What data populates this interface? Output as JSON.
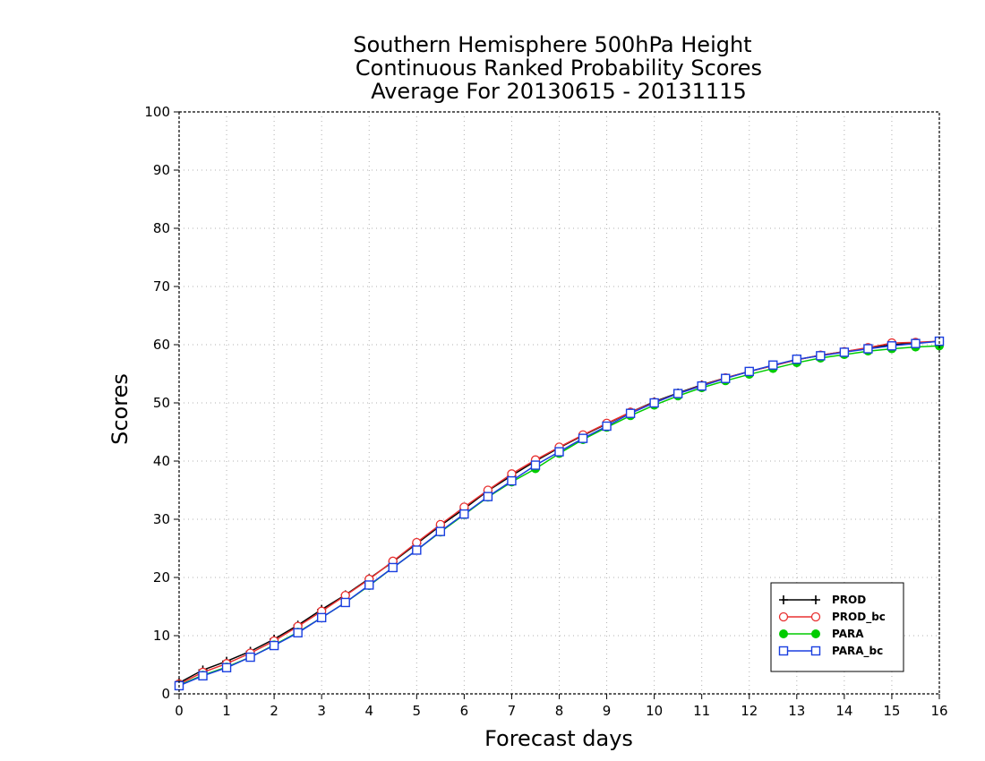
{
  "chart_data": {
    "type": "line",
    "title_lines": [
      "Southern Hemisphere 500hPa Height",
      "Continuous Ranked Probability Scores",
      "Average For 20130615 - 20131115"
    ],
    "xlabel": "Forecast days",
    "ylabel": "Scores",
    "xlim": [
      0,
      16
    ],
    "ylim": [
      0,
      100
    ],
    "xticks": [
      0,
      1,
      2,
      3,
      4,
      5,
      6,
      7,
      8,
      9,
      10,
      11,
      12,
      13,
      14,
      15,
      16
    ],
    "yticks": [
      0,
      10,
      20,
      30,
      40,
      50,
      60,
      70,
      80,
      90,
      100
    ],
    "grid": true,
    "legend_position": "bottom-right",
    "x": [
      0,
      0.5,
      1,
      1.5,
      2,
      2.5,
      3,
      3.5,
      4,
      4.5,
      5,
      5.5,
      6,
      6.5,
      7,
      7.5,
      8,
      8.5,
      9,
      9.5,
      10,
      10.5,
      11,
      11.5,
      12,
      12.5,
      13,
      13.5,
      14,
      14.5,
      15,
      15.5,
      16
    ],
    "series": [
      {
        "name": "PROD",
        "color": "#000000",
        "marker": "plus",
        "values": [
          1.9,
          4.1,
          5.6,
          7.3,
          9.4,
          11.8,
          14.5,
          17.0,
          19.8,
          22.7,
          25.8,
          28.9,
          31.8,
          34.9,
          37.5,
          40.0,
          42.3,
          44.4,
          46.4,
          48.4,
          50.2,
          51.7,
          53.1,
          54.3,
          55.4,
          56.4,
          57.4,
          58.2,
          58.8,
          59.4,
          60.0,
          60.3,
          60.6
        ]
      },
      {
        "name": "PROD_bc",
        "color": "#e83030",
        "marker": "circle",
        "values": [
          1.7,
          3.7,
          5.2,
          7.0,
          9.1,
          11.6,
          14.2,
          16.9,
          19.7,
          22.8,
          26.0,
          29.1,
          32.1,
          35.0,
          37.8,
          40.2,
          42.4,
          44.5,
          46.5,
          48.4,
          50.1,
          51.6,
          53.0,
          54.3,
          55.4,
          56.4,
          57.4,
          58.2,
          58.8,
          59.5,
          60.3,
          60.4,
          60.6
        ]
      },
      {
        "name": "PARA",
        "color": "#00cc00",
        "marker": "filled-circle",
        "values": [
          1.5,
          3.2,
          4.6,
          6.3,
          8.4,
          10.6,
          13.1,
          15.7,
          18.6,
          21.7,
          24.7,
          27.8,
          30.8,
          33.8,
          36.4,
          38.7,
          41.3,
          43.7,
          45.8,
          47.8,
          49.6,
          51.2,
          52.6,
          53.8,
          54.9,
          55.9,
          56.9,
          57.7,
          58.3,
          58.9,
          59.3,
          59.6,
          59.8
        ]
      },
      {
        "name": "PARA_bc",
        "color": "#1a3fe0",
        "marker": "square",
        "values": [
          1.4,
          3.1,
          4.5,
          6.3,
          8.3,
          10.5,
          13.1,
          15.7,
          18.7,
          21.7,
          24.7,
          27.9,
          30.9,
          33.9,
          36.6,
          39.3,
          41.6,
          43.9,
          46.0,
          48.2,
          50.0,
          51.6,
          52.9,
          54.2,
          55.4,
          56.5,
          57.5,
          58.1,
          58.7,
          59.3,
          59.8,
          60.2,
          60.6
        ]
      }
    ]
  }
}
